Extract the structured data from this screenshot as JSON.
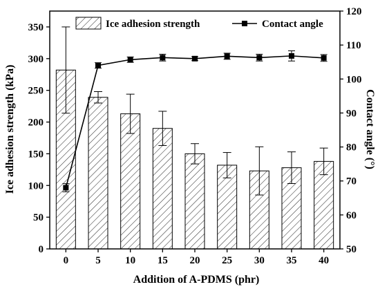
{
  "chart_data": {
    "type": "bar",
    "xlabel": "Addition of A-PDMS (phr)",
    "ylabel": "Ice adhesion strength (kPa)",
    "y2label": "Contact angle (°)",
    "categories": [
      "0",
      "5",
      "10",
      "15",
      "20",
      "25",
      "30",
      "35",
      "40"
    ],
    "ylim": [
      0,
      375
    ],
    "y2lim": [
      50,
      120
    ],
    "yticks": [
      0,
      50,
      100,
      150,
      200,
      250,
      300,
      350
    ],
    "y2ticks": [
      50,
      60,
      70,
      80,
      90,
      100,
      110,
      120
    ],
    "grid": false,
    "legend_position": "top",
    "series": [
      {
        "name": "Ice adhesion strength",
        "type": "bar",
        "axis": "left",
        "pattern": "diagonal-hatch",
        "values": [
          282,
          239,
          213,
          190,
          150,
          132,
          123,
          128,
          138
        ],
        "errors": [
          68,
          9,
          31,
          27,
          16,
          20,
          38,
          25,
          21
        ]
      },
      {
        "name": "Contact angle",
        "type": "line",
        "axis": "right",
        "marker": "square",
        "color": "#000000",
        "values": [
          68,
          104,
          105.7,
          106.3,
          106,
          106.7,
          106.3,
          106.8,
          106.2
        ],
        "errors": [
          1.2,
          0.8,
          0.8,
          1.0,
          0.6,
          0.9,
          1.0,
          1.5,
          1.0
        ]
      }
    ]
  }
}
